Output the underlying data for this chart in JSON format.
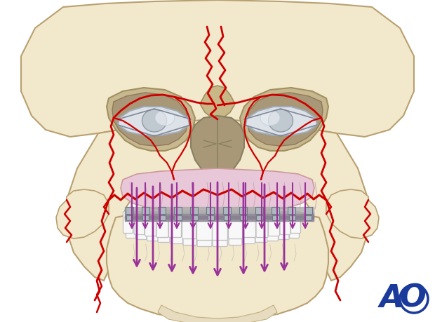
{
  "bg_color": "#ffffff",
  "skull_color": "#f2e8cc",
  "skull_edge": "#b8a070",
  "fracture_color": "#cc0000",
  "arrow_color": "#993399",
  "gum_color": "#e8c8d8",
  "orbit_dark": "#b0a080",
  "orbit_inner": "#888070",
  "eye_color": "#d8dce0",
  "eye_edge": "#a0a8b0",
  "nose_color": "#a09070",
  "bracket_color": "#7a8090",
  "tooth_color": "#f8f8f8",
  "tooth_edge": "#c0c0c0",
  "ao_color": "#1a3a9c",
  "figsize": [
    6.2,
    4.59
  ],
  "dpi": 100
}
